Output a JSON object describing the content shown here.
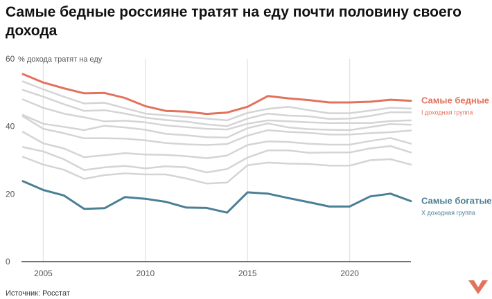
{
  "title": "Самые бедные россияне тратят на еду почти половину своего дохода",
  "source": "Источник: Росстат",
  "colors": {
    "poor": "#E2725B",
    "rich": "#4A7F96",
    "middle": "#D4D4D4",
    "axis": "#444444",
    "grid": "#E6E6E6",
    "logo": "#E2725B"
  },
  "chart_data": {
    "type": "line",
    "ylabel": "% дохода тратят на еду",
    "ylim": [
      0,
      60
    ],
    "yticks": [
      0,
      20,
      40,
      60
    ],
    "xlim": [
      2004,
      2023
    ],
    "xticks": [
      2005,
      2010,
      2015,
      2020
    ],
    "grid": "vertical",
    "legend": "right",
    "x": [
      2004,
      2005,
      2006,
      2007,
      2008,
      2009,
      2010,
      2011,
      2012,
      2013,
      2014,
      2015,
      2016,
      2017,
      2018,
      2019,
      2020,
      2021,
      2022,
      2023
    ],
    "series": [
      {
        "name": "Самые бедные",
        "sublabel": "I доходная группа",
        "color": "#E2725B",
        "values": [
          55.5,
          53,
          51.3,
          49.8,
          49.9,
          48.4,
          46,
          44.6,
          44.4,
          43.7,
          44.1,
          45.8,
          49,
          48.3,
          47.8,
          47.1,
          47.1,
          47.3,
          47.9,
          47.6
        ]
      },
      {
        "values": [
          53.3,
          51,
          48.8,
          46.8,
          47,
          45.4,
          43.8,
          43.3,
          42.8,
          42.3,
          41.8,
          44,
          45.2,
          45.8,
          44.8,
          43.9,
          43.9,
          44.7,
          45.5,
          45.3
        ]
      },
      {
        "values": [
          50.8,
          48.8,
          46.6,
          44.6,
          44.8,
          43.8,
          42.6,
          41.9,
          41.4,
          40.6,
          40.1,
          42.3,
          43.8,
          43.2,
          43,
          42.2,
          42.3,
          43.1,
          44.2,
          44.2
        ]
      },
      {
        "values": [
          48,
          45.5,
          43.8,
          42.7,
          41.5,
          41.7,
          41.2,
          40.3,
          39.8,
          39.3,
          39.1,
          40.8,
          41.8,
          41.5,
          41.2,
          41,
          41,
          41,
          41.6,
          41.8
        ]
      },
      {
        "values": [
          43.4,
          40.8,
          39.9,
          38.9,
          40.2,
          39.7,
          39,
          37.8,
          37.4,
          36.8,
          36.7,
          39.5,
          40.9,
          39.7,
          39.2,
          39,
          38.9,
          39.8,
          40.7,
          40.5
        ]
      },
      {
        "values": [
          43,
          39.3,
          38,
          36.5,
          36.5,
          36.4,
          35.9,
          35.1,
          34.7,
          34.5,
          34.8,
          37.3,
          38.9,
          38.4,
          38.1,
          37.6,
          37.6,
          38,
          38.3,
          38.8
        ]
      },
      {
        "values": [
          38.4,
          35,
          33.5,
          30.9,
          31.5,
          32.1,
          31.7,
          31.6,
          31.2,
          30.6,
          31.4,
          34.5,
          35.6,
          35.4,
          34.9,
          34.6,
          34.6,
          35.7,
          36.6,
          34.9
        ]
      },
      {
        "values": [
          33.9,
          32.6,
          30.3,
          27.1,
          27.9,
          28.3,
          27.6,
          28.2,
          27.9,
          26.4,
          27.4,
          30.8,
          32.9,
          32.9,
          32.2,
          32.3,
          32.3,
          33.5,
          34.2,
          32.3
        ]
      },
      {
        "values": [
          31,
          28.7,
          27.2,
          24.5,
          25.6,
          26.1,
          25.8,
          25.8,
          24.6,
          23.1,
          23.4,
          28.5,
          29.3,
          29,
          28.9,
          28.4,
          28.4,
          30,
          30.3,
          28.7
        ]
      },
      {
        "name": "Самые богатые",
        "sublabel": "X доходная группа",
        "color": "#4A7F96",
        "values": [
          23.8,
          21.2,
          19.6,
          15.6,
          15.8,
          19.1,
          18.6,
          17.7,
          16,
          15.9,
          14.5,
          20.5,
          20.1,
          18.8,
          17.6,
          16.3,
          16.3,
          19.3,
          20.1,
          17.9
        ]
      }
    ]
  }
}
